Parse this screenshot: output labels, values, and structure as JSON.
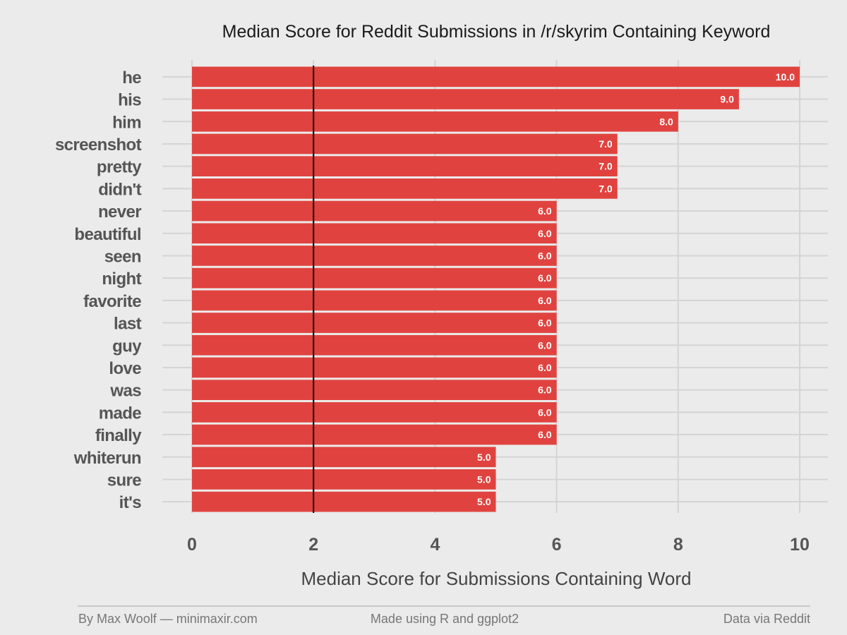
{
  "chart_data": {
    "type": "bar",
    "orientation": "horizontal",
    "title": "Median Score for Reddit Submissions in /r/skyrim Containing Keyword",
    "xlabel": "Median Score for Submissions Containing Word",
    "ylabel": "",
    "categories": [
      "he",
      "his",
      "him",
      "screenshot",
      "pretty",
      "didn't",
      "never",
      "beautiful",
      "seen",
      "night",
      "favorite",
      "last",
      "guy",
      "love",
      "was",
      "made",
      "finally",
      "whiterun",
      "sure",
      "it's"
    ],
    "values": [
      10,
      9,
      8,
      7,
      7,
      7,
      6,
      6,
      6,
      6,
      6,
      6,
      6,
      6,
      6,
      6,
      6,
      5,
      5,
      5
    ],
    "value_labels": [
      "10.0",
      "9.0",
      "8.0",
      "7.0",
      "7.0",
      "7.0",
      "6.0",
      "6.0",
      "6.0",
      "6.0",
      "6.0",
      "6.0",
      "6.0",
      "6.0",
      "6.0",
      "6.0",
      "6.0",
      "5.0",
      "5.0",
      "5.0"
    ],
    "xlim": [
      0,
      10
    ],
    "xticks": [
      "0",
      "2",
      "4",
      "6",
      "8",
      "10"
    ],
    "reference_line": 2,
    "grid": true,
    "bar_color": "#e0433f",
    "reference_line_color": "#000000",
    "background_color": "#ebebeb"
  },
  "footer": {
    "left": "By Max Woolf — minimaxir.com",
    "center": "Made using R and ggplot2",
    "right": "Data via Reddit"
  }
}
